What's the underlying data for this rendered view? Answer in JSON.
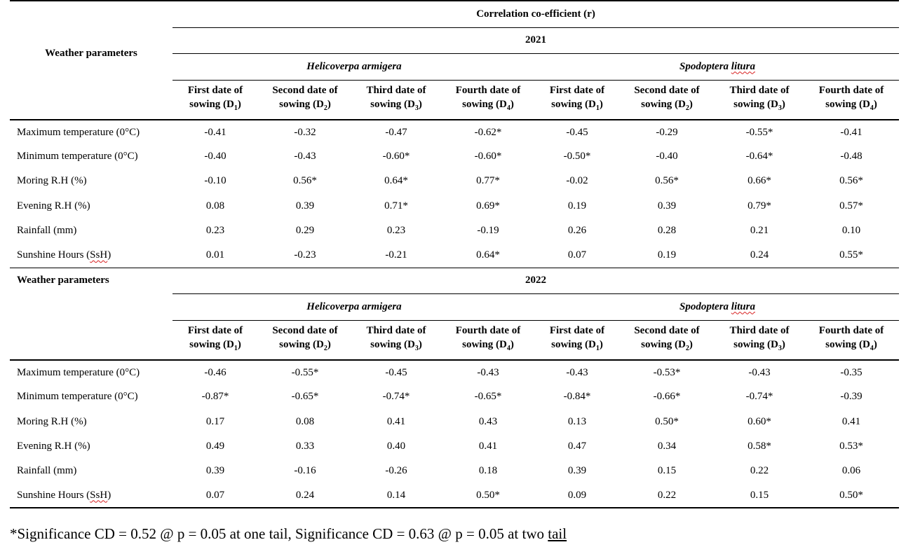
{
  "table": {
    "title": "Correlation co-efficient (r)",
    "weather_label": "Weather parameters",
    "species": [
      "Helicoverpa armigera",
      "Spodoptera litura"
    ],
    "sowing_dates": [
      {
        "line1": "First date of",
        "line2": "sowing (D",
        "sub": "1",
        "close": ")"
      },
      {
        "line1": "Second date of",
        "line2": "sowing (D",
        "sub": "2",
        "close": ")"
      },
      {
        "line1": "Third date of",
        "line2": "sowing (D",
        "sub": "3",
        "close": ")"
      },
      {
        "line1": "Fourth date of",
        "line2": "sowing (D",
        "sub": "4",
        "close": ")"
      }
    ],
    "years": [
      {
        "year": "2021",
        "rows": [
          {
            "param": "Maximum temperature (0°C)",
            "values": [
              "-0.41",
              "-0.32",
              "-0.47",
              "-0.62*",
              "-0.45",
              "-0.29",
              "-0.55*",
              "-0.41"
            ]
          },
          {
            "param": "Minimum temperature (0°C)",
            "values": [
              "-0.40",
              "-0.43",
              "-0.60*",
              "-0.60*",
              "-0.50*",
              "-0.40",
              "-0.64*",
              "-0.48"
            ]
          },
          {
            "param": "Moring R.H (%)",
            "values": [
              "-0.10",
              "0.56*",
              "0.64*",
              "0.77*",
              "-0.02",
              "0.56*",
              "0.66*",
              "0.56*"
            ]
          },
          {
            "param": "Evening R.H (%)",
            "values": [
              "0.08",
              "0.39",
              "0.71*",
              "0.69*",
              "0.19",
              "0.39",
              "0.79*",
              "0.57*"
            ]
          },
          {
            "param": "Rainfall (mm)",
            "values": [
              "0.23",
              "0.29",
              "0.23",
              "-0.19",
              "0.26",
              "0.28",
              "0.21",
              "0.10"
            ]
          },
          {
            "param": "Sunshine Hours (SsH)",
            "values": [
              "0.01",
              "-0.23",
              "-0.21",
              "0.64*",
              "0.07",
              "0.19",
              "0.24",
              "0.55*"
            ]
          }
        ]
      },
      {
        "year": "2022",
        "rows": [
          {
            "param": "Maximum temperature (0°C)",
            "values": [
              "-0.46",
              "-0.55*",
              "-0.45",
              "-0.43",
              "-0.43",
              "-0.53*",
              "-0.43",
              "-0.35"
            ]
          },
          {
            "param": "Minimum temperature (0°C)",
            "values": [
              "-0.87*",
              "-0.65*",
              "-0.74*",
              "-0.65*",
              "-0.84*",
              "-0.66*",
              "-0.74*",
              "-0.39"
            ]
          },
          {
            "param": "Moring R.H (%)",
            "values": [
              "0.17",
              "0.08",
              "0.41",
              "0.43",
              "0.13",
              "0.50*",
              "0.60*",
              "0.41"
            ]
          },
          {
            "param": "Evening R.H (%)",
            "values": [
              "0.49",
              "0.33",
              "0.40",
              "0.41",
              "0.47",
              "0.34",
              "0.58*",
              "0.53*"
            ]
          },
          {
            "param": "Rainfall (mm)",
            "values": [
              "0.39",
              "-0.16",
              "-0.26",
              "0.18",
              "0.39",
              "0.15",
              "0.22",
              "0.06"
            ]
          },
          {
            "param": "Sunshine Hours (SsH)",
            "values": [
              "0.07",
              "0.24",
              "0.14",
              "0.50*",
              "0.09",
              "0.22",
              "0.15",
              "0.50*"
            ]
          }
        ]
      }
    ]
  },
  "footnote": {
    "text": "*Significance CD = 0.52 @ p = 0.05 at one tail, Significance CD = 0.63 @ p = 0.05 at two ",
    "last_word": "tail"
  }
}
